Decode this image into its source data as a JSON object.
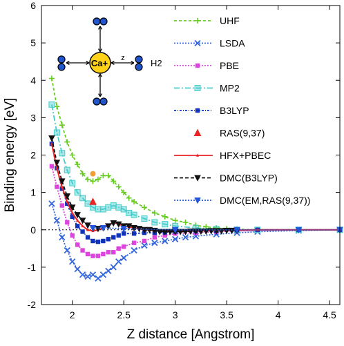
{
  "chart_data": {
    "type": "line",
    "title": "",
    "xlabel": "Z distance [Angstrom]",
    "ylabel": "Binding energy [eV]",
    "xlim": [
      1.7,
      4.6
    ],
    "ylim": [
      -2,
      6
    ],
    "xticks": [
      2,
      2.5,
      3,
      3.5,
      4,
      4.5
    ],
    "xtick_labels": [
      "2",
      "2.5",
      "3",
      "3.5",
      "4",
      "4.5"
    ],
    "yticks": [
      -2,
      -1,
      0,
      1,
      2,
      3,
      4,
      5,
      6
    ],
    "ytick_labels": [
      "-2",
      "-1",
      "0",
      "1",
      "2",
      "3",
      "4",
      "5",
      "6"
    ],
    "grid": false,
    "legend_position": "top-right",
    "zero_line": true,
    "series": [
      {
        "name": "UHF",
        "color": "#66cc22",
        "dash": "4,3",
        "marker": "plus",
        "x": [
          1.8,
          1.85,
          1.9,
          1.95,
          2.0,
          2.05,
          2.1,
          2.15,
          2.2,
          2.25,
          2.3,
          2.35,
          2.4,
          2.45,
          2.5,
          2.55,
          2.6,
          2.7,
          2.8,
          2.9,
          3.0,
          3.1,
          3.2,
          3.3,
          3.4,
          3.5,
          3.6,
          3.8,
          4.2,
          4.6
        ],
        "y": [
          4.05,
          3.3,
          2.8,
          2.35,
          2.0,
          1.75,
          1.5,
          1.35,
          1.3,
          1.35,
          1.45,
          1.45,
          1.3,
          1.15,
          1.0,
          0.85,
          0.75,
          0.6,
          0.45,
          0.35,
          0.25,
          0.2,
          0.12,
          0.08,
          0.05,
          0.03,
          0.02,
          0.0,
          0.0,
          0.0
        ]
      },
      {
        "name": "LSDA",
        "color": "#3366dd",
        "dash": "2,2",
        "marker": "x",
        "x": [
          1.8,
          1.85,
          1.9,
          1.95,
          2.0,
          2.05,
          2.1,
          2.15,
          2.2,
          2.25,
          2.3,
          2.35,
          2.4,
          2.45,
          2.5,
          2.6,
          2.7,
          2.8,
          2.9,
          3.0,
          3.1,
          3.2,
          3.4,
          3.6,
          3.8,
          4.2,
          4.6
        ],
        "y": [
          0.7,
          0.25,
          -0.2,
          -0.55,
          -0.85,
          -1.05,
          -1.2,
          -1.25,
          -1.2,
          -1.3,
          -1.2,
          -1.1,
          -1.0,
          -0.85,
          -0.75,
          -0.55,
          -0.42,
          -0.35,
          -0.3,
          -0.25,
          -0.2,
          -0.17,
          -0.12,
          -0.08,
          -0.05,
          -0.02,
          0.0
        ]
      },
      {
        "name": "PBE",
        "color": "#dd44dd",
        "dash": "2,2",
        "marker": "square",
        "x": [
          1.8,
          1.85,
          1.9,
          1.95,
          2.0,
          2.05,
          2.1,
          2.15,
          2.2,
          2.25,
          2.3,
          2.35,
          2.4,
          2.45,
          2.5,
          2.6,
          2.7,
          2.8,
          2.9,
          3.0,
          3.2,
          3.4,
          3.6,
          3.8,
          4.2,
          4.6
        ],
        "y": [
          1.7,
          1.15,
          0.65,
          0.2,
          -0.15,
          -0.4,
          -0.55,
          -0.65,
          -0.7,
          -0.7,
          -0.65,
          -0.6,
          -0.6,
          -0.5,
          -0.45,
          -0.35,
          -0.3,
          -0.2,
          -0.15,
          -0.1,
          -0.08,
          -0.05,
          -0.03,
          -0.02,
          0.0,
          0.0
        ]
      },
      {
        "name": "MP2",
        "color": "#44cccc",
        "dash": "8,3,2,3",
        "marker": "square-open",
        "x": [
          1.8,
          1.85,
          1.9,
          1.95,
          2.0,
          2.05,
          2.1,
          2.15,
          2.2,
          2.25,
          2.3,
          2.35,
          2.4,
          2.45,
          2.5,
          2.55,
          2.6,
          2.7,
          2.8,
          2.9,
          3.0,
          3.2,
          3.4,
          3.6,
          3.8,
          4.2,
          4.6
        ],
        "y": [
          3.35,
          2.6,
          2.05,
          1.6,
          1.25,
          1.0,
          0.85,
          0.7,
          0.6,
          0.55,
          0.55,
          0.6,
          0.65,
          0.6,
          0.55,
          0.45,
          0.4,
          0.3,
          0.2,
          0.15,
          0.1,
          0.05,
          0.02,
          0.0,
          0.0,
          0.0,
          0.0
        ]
      },
      {
        "name": "B3LYP",
        "color": "#1133bb",
        "dash": "3,2,1,2",
        "marker": "square",
        "x": [
          1.8,
          1.85,
          1.9,
          1.95,
          2.0,
          2.05,
          2.1,
          2.15,
          2.2,
          2.25,
          2.3,
          2.35,
          2.4,
          2.45,
          2.5,
          2.6,
          2.7,
          2.8,
          2.9,
          3.0,
          3.2,
          3.4,
          3.6,
          3.8,
          4.2,
          4.6
        ],
        "y": [
          2.3,
          1.65,
          1.1,
          0.7,
          0.35,
          0.1,
          -0.05,
          -0.2,
          -0.3,
          -0.32,
          -0.3,
          -0.25,
          -0.2,
          -0.15,
          -0.1,
          -0.1,
          -0.08,
          -0.08,
          -0.07,
          -0.05,
          -0.03,
          -0.02,
          -0.01,
          0.0,
          0.0,
          0.0
        ]
      },
      {
        "name": "RAS(9,37)",
        "color": "#ee2222",
        "dash": "",
        "marker": "triangle",
        "line": false,
        "x": [
          2.2
        ],
        "y": [
          0.75
        ]
      },
      {
        "name": "HFX+PBEC",
        "color": "#ee2222",
        "dash": "",
        "marker": "small-triangle",
        "x": [
          1.8,
          1.85,
          1.9,
          1.95,
          2.0,
          2.05,
          2.1,
          2.15,
          2.2,
          2.25,
          2.3,
          2.35,
          2.4,
          2.45,
          2.5,
          2.6,
          2.7,
          2.8,
          2.9,
          3.0,
          3.2,
          3.4,
          3.6,
          3.8,
          4.2,
          4.6
        ],
        "y": [
          2.3,
          1.65,
          1.15,
          0.75,
          0.45,
          0.25,
          0.1,
          0.0,
          -0.03,
          0.0,
          0.05,
          0.12,
          0.2,
          0.15,
          0.1,
          0.05,
          0.0,
          -0.02,
          -0.03,
          -0.03,
          -0.03,
          -0.02,
          -0.01,
          0.0,
          0.0,
          0.0
        ]
      },
      {
        "name": "DMC(B3LYP)",
        "color": "#111111",
        "dash": "5,3",
        "marker": "triangle-down",
        "x": [
          1.8,
          1.85,
          1.9,
          1.95,
          2.0,
          2.05,
          2.1,
          2.15,
          2.2,
          2.25,
          2.3,
          2.35,
          2.4,
          2.45,
          2.5,
          2.55,
          2.6,
          2.65,
          2.7,
          2.75,
          2.8,
          2.85,
          2.9,
          2.95,
          3.0,
          3.05,
          3.1,
          3.15,
          3.2,
          3.25,
          3.3,
          3.35,
          3.4,
          3.45,
          3.5,
          3.55,
          3.6
        ],
        "y": [
          2.45,
          1.8,
          1.3,
          0.9,
          0.6,
          0.4,
          0.25,
          0.12,
          0.05,
          0.03,
          0.05,
          0.1,
          0.18,
          0.15,
          0.1,
          0.1,
          0.05,
          0.03,
          0.0,
          0.0,
          -0.02,
          -0.05,
          -0.05,
          -0.05,
          -0.05,
          -0.05,
          -0.05,
          -0.04,
          -0.04,
          -0.04,
          -0.04,
          -0.03,
          -0.03,
          -0.03,
          -0.02,
          -0.02,
          -0.02
        ]
      },
      {
        "name": "DMC(EM,RAS(9,37))",
        "color": "#2255dd",
        "dash": "2,2",
        "marker": "triangle-down",
        "x": [
          2.2,
          2.3,
          2.5,
          3.0,
          3.6,
          4.2,
          4.6
        ],
        "y": [
          0.05,
          0.05,
          0.03,
          0.0,
          0.0,
          0.0,
          0.0
        ]
      },
      {
        "name": "",
        "color": "#f0a030",
        "dash": "",
        "marker": "circle",
        "line": false,
        "x": [
          2.2
        ],
        "y": [
          1.5
        ]
      }
    ],
    "inset": {
      "center_label": "Ca+",
      "distance_label": "z",
      "molecule_label": "H2"
    }
  }
}
